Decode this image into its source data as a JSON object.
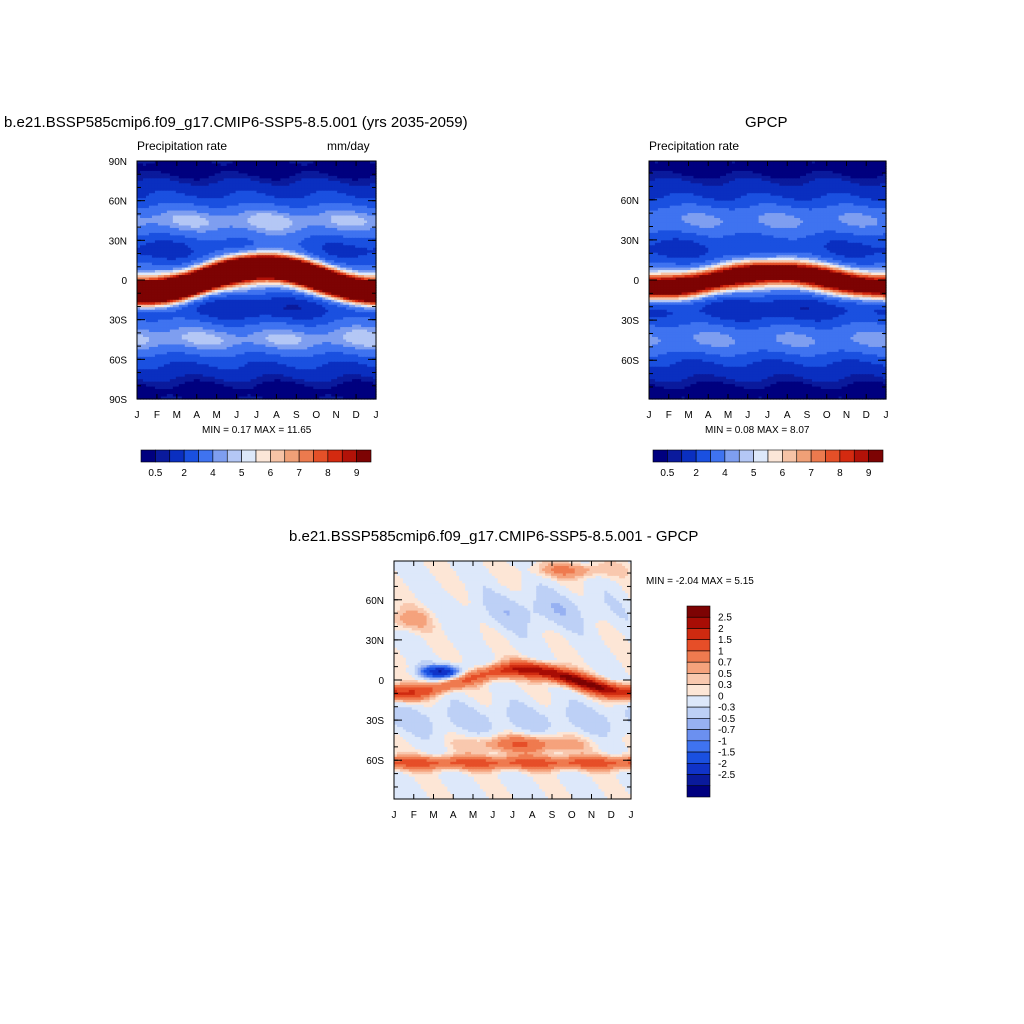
{
  "palettes": {
    "precip": [
      "#00007f",
      "#0a1a9c",
      "#0a2fc0",
      "#1a50e0",
      "#3f73f0",
      "#7e9ef0",
      "#b4c7f5",
      "#dde8fa",
      "#fbe6d8",
      "#f6c3a6",
      "#f0a077",
      "#ec7a4e",
      "#e55028",
      "#d42a10",
      "#b21208",
      "#7d0303"
    ],
    "diff": [
      "#00007f",
      "#0a1a9c",
      "#1033c8",
      "#1a50e0",
      "#3f73f0",
      "#6b90f0",
      "#97b1f2",
      "#bdd0f6",
      "#dde8fa",
      "#fde6d6",
      "#f9c8ae",
      "#f5a27c",
      "#ef7a4f",
      "#e64e28",
      "#cf2a10",
      "#a80d05",
      "#7d0303"
    ]
  },
  "chart_data": [
    {
      "type": "heatmap",
      "title": "b.e21.BSSP585cmip6.f09_g17.CMIP6-SSP5-8.5.001 (yrs 2035-2059)",
      "left_label": "Precipitation rate",
      "right_label": "mm/day",
      "x_ticks": [
        "J",
        "F",
        "M",
        "A",
        "M",
        "J",
        "J",
        "A",
        "S",
        "O",
        "N",
        "D",
        "J"
      ],
      "y_ticks": [
        "90N",
        "60N",
        "30N",
        "0",
        "30S",
        "60S",
        "90S"
      ],
      "y_values": [
        90,
        60,
        30,
        0,
        -30,
        -60,
        -90
      ],
      "min_max_text": "MIN =   0.17 MAX =  11.65",
      "min": 0.17,
      "max": 11.65,
      "colorbar_labels": [
        "0.5",
        "2",
        "4",
        "5",
        "6",
        "7",
        "8",
        "9"
      ],
      "itcz_peak": 11.6,
      "itcz_amplitude_deg": 10
    },
    {
      "type": "heatmap",
      "title": "GPCP",
      "left_label": "Precipitation rate",
      "right_label": "",
      "x_ticks": [
        "J",
        "F",
        "M",
        "A",
        "M",
        "J",
        "J",
        "A",
        "S",
        "O",
        "N",
        "D",
        "J"
      ],
      "y_ticks": [
        "60N",
        "30N",
        "0",
        "30S",
        "60S"
      ],
      "y_values": [
        60,
        30,
        0,
        -30,
        -60
      ],
      "min_max_text": "MIN =   0.08 MAX =   8.07",
      "min": 0.08,
      "max": 8.07,
      "colorbar_labels": [
        "0.5",
        "2",
        "4",
        "5",
        "6",
        "7",
        "8",
        "9"
      ],
      "itcz_peak": 8.0,
      "itcz_amplitude_deg": 6
    },
    {
      "type": "heatmap",
      "title": "b.e21.BSSP585cmip6.f09_g17.CMIP6-SSP5-8.5.001 - GPCP",
      "x_ticks": [
        "J",
        "F",
        "M",
        "A",
        "M",
        "J",
        "J",
        "A",
        "S",
        "O",
        "N",
        "D",
        "J"
      ],
      "y_ticks": [
        "60N",
        "30N",
        "0",
        "30S",
        "60S"
      ],
      "y_values": [
        60,
        30,
        0,
        -30,
        -60
      ],
      "min_max_text": "MIN =  -2.04 MAX =   5.15",
      "min": -2.04,
      "max": 5.15,
      "colorbar_labels": [
        "2.5",
        "2",
        "1.5",
        "1",
        "0.7",
        "0.5",
        "0.3",
        "0",
        "-0.3",
        "-0.5",
        "-0.7",
        "-1",
        "-1.5",
        "-2",
        "-2.5"
      ]
    }
  ]
}
